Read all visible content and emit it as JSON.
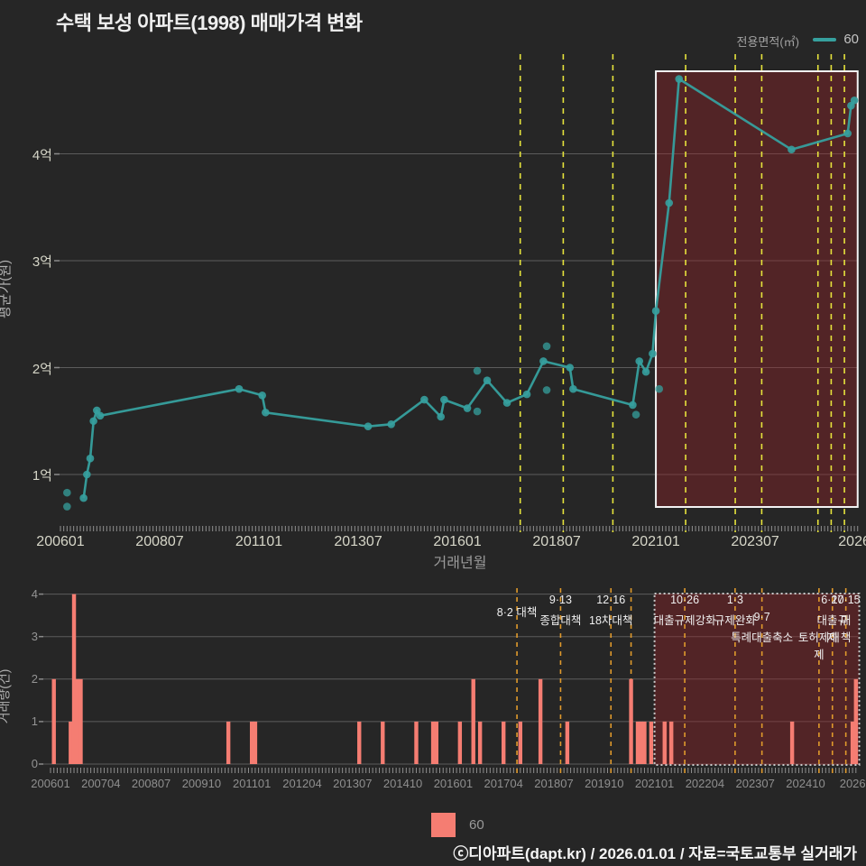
{
  "page": {
    "title": "수택 보성 아파트(1998) 매매가격 변화",
    "footer": "ⓒ디아파트(dapt.kr) / 2026.01.01 / 자료=국토교통부 실거래가"
  },
  "legend_top": {
    "label": "전용면적(㎡)",
    "series": "60"
  },
  "legend_bottom": {
    "series": "60"
  },
  "colors": {
    "background": "#262626",
    "teal_line": "#36a09e",
    "pink_bar": "#f57d72",
    "yellow_dash": "#e6e33c",
    "orange_dash": "#e09a2c",
    "grid": "#5c5c5c",
    "tick": "#999999",
    "highlight_fill": "rgba(150,34,40,0.40)",
    "highlight_stroke_top": "#f2f2f2",
    "highlight_stroke_bottom": "#c9c9c9",
    "policy_text": "#f0f0f0"
  },
  "policy_lines": [
    {
      "m": "201708",
      "top": true,
      "labels": [
        {
          "text": "8·2 대책",
          "row": 1.5
        }
      ]
    },
    {
      "m": "201809",
      "top": true,
      "labels": [
        {
          "text": "9·13",
          "row": 1
        },
        {
          "text": "종합대책",
          "row": 2
        }
      ]
    },
    {
      "m": "201912",
      "top": true,
      "labels": [
        {
          "text": "12·16",
          "row": 1
        },
        {
          "text": "18차대책",
          "row": 2
        }
      ]
    },
    {
      "m": "202006",
      "top": false,
      "labels": []
    },
    {
      "m": "202110",
      "top": true,
      "labels": [
        {
          "text": "10·26",
          "row": 1
        },
        {
          "text": "대출규제강화",
          "row": 2
        }
      ]
    },
    {
      "m": "202301",
      "top": true,
      "labels": [
        {
          "text": "1·3",
          "row": 1
        },
        {
          "text": "규제완화",
          "row": 2
        }
      ]
    },
    {
      "m": "202309",
      "top": true,
      "labels": [
        {
          "text": "9·7",
          "row": 2
        },
        {
          "text": "특례대출축소",
          "row": 3
        }
      ]
    },
    {
      "m": "202502",
      "top": true,
      "labels": [
        {
          "text": "토허제해제",
          "row": 3
        }
      ]
    },
    {
      "m": "202506",
      "top": true,
      "labels": [
        {
          "text": "6·27",
          "row": 1
        },
        {
          "text": "대출규제",
          "row": 2
        }
      ]
    },
    {
      "m": "202510",
      "top": true,
      "labels": [
        {
          "text": "10·15",
          "row": 1
        },
        {
          "text": "대책",
          "row": 2
        }
      ]
    }
  ],
  "chart_data": [
    {
      "type": "line",
      "name": "price-history",
      "ylabel": "평균가(원)",
      "xlabel": "거래년월",
      "unit": "억원",
      "ylim": [
        0.5,
        4.9
      ],
      "grid": true,
      "legend_position": "top-right",
      "y_ticks": [
        {
          "v": 1,
          "label": "1억"
        },
        {
          "v": 2,
          "label": "2억"
        },
        {
          "v": 3,
          "label": "3억"
        },
        {
          "v": 4,
          "label": "4억"
        }
      ],
      "x_ticks": [
        {
          "m": "200601",
          "label": "200601"
        },
        {
          "m": "200807",
          "label": "200807"
        },
        {
          "m": "201101",
          "label": "201101"
        },
        {
          "m": "201307",
          "label": "201307"
        },
        {
          "m": "201601",
          "label": "201601"
        },
        {
          "m": "201807",
          "label": "201807"
        },
        {
          "m": "202101",
          "label": "202101"
        },
        {
          "m": "202307",
          "label": "202307"
        },
        {
          "m": "202601",
          "label": "2026"
        }
      ],
      "series": [
        {
          "name": "60",
          "points": [
            [
              "200608",
              0.78
            ],
            [
              "200609",
              1.0
            ],
            [
              "200610",
              1.15
            ],
            [
              "200611",
              1.5
            ],
            [
              "200612",
              1.6
            ],
            [
              "200701",
              1.55
            ],
            [
              "201007",
              1.8
            ],
            [
              "201102",
              1.74
            ],
            [
              "201103",
              1.58
            ],
            [
              "201310",
              1.45
            ],
            [
              "201405",
              1.47
            ],
            [
              "201503",
              1.7
            ],
            [
              "201508",
              1.54
            ],
            [
              "201509",
              1.7
            ],
            [
              "201604",
              1.62
            ],
            [
              "201610",
              1.88
            ],
            [
              "201704",
              1.67
            ],
            [
              "201710",
              1.75
            ],
            [
              "201803",
              2.06
            ],
            [
              "201811",
              2.0
            ],
            [
              "201812",
              1.8
            ],
            [
              "202006",
              1.65
            ],
            [
              "202008",
              2.06
            ],
            [
              "202010",
              1.96
            ],
            [
              "202012",
              2.13
            ],
            [
              "202101",
              2.53
            ],
            [
              "202105",
              3.54
            ],
            [
              "202108",
              4.7
            ],
            [
              "202406",
              4.04
            ],
            [
              "202511",
              4.19
            ],
            [
              "202512",
              4.45
            ],
            [
              "202601",
              4.5
            ]
          ]
        }
      ],
      "scatter": [
        [
          "200603",
          0.83
        ],
        [
          "200603",
          0.7
        ],
        [
          "201607",
          1.97
        ],
        [
          "201607",
          1.59
        ],
        [
          "201804",
          2.2
        ],
        [
          "201804",
          1.79
        ],
        [
          "202007",
          1.56
        ],
        [
          "202102",
          1.8
        ]
      ],
      "highlight": {
        "from": "202101",
        "to": "202602"
      }
    },
    {
      "type": "bar",
      "name": "transaction-volume",
      "ylabel": "거래량(건)",
      "ylim": [
        0,
        4
      ],
      "grid": true,
      "y_ticks": [
        {
          "v": 0,
          "label": "0"
        },
        {
          "v": 1,
          "label": "1"
        },
        {
          "v": 2,
          "label": "2"
        },
        {
          "v": 3,
          "label": "3"
        },
        {
          "v": 4,
          "label": "4"
        }
      ],
      "x_ticks": [
        {
          "m": "200601",
          "label": "200601"
        },
        {
          "m": "200704",
          "label": "200704"
        },
        {
          "m": "200807",
          "label": "200807"
        },
        {
          "m": "200910",
          "label": "200910"
        },
        {
          "m": "201101",
          "label": "201101"
        },
        {
          "m": "201204",
          "label": "201204"
        },
        {
          "m": "201307",
          "label": "201307"
        },
        {
          "m": "201410",
          "label": "201410"
        },
        {
          "m": "201601",
          "label": "201601"
        },
        {
          "m": "201704",
          "label": "201704"
        },
        {
          "m": "201807",
          "label": "201807"
        },
        {
          "m": "201910",
          "label": "201910"
        },
        {
          "m": "202101",
          "label": "202101"
        },
        {
          "m": "202204",
          "label": "202204"
        },
        {
          "m": "202307",
          "label": "202307"
        },
        {
          "m": "202410",
          "label": "202410"
        },
        {
          "m": "202601",
          "label": "20260"
        }
      ],
      "series": [
        {
          "name": "60",
          "bars": [
            [
              "200602",
              2
            ],
            [
              "200607",
              1
            ],
            [
              "200608",
              4
            ],
            [
              "200609",
              2
            ],
            [
              "200610",
              2
            ],
            [
              "201006",
              1
            ],
            [
              "201101",
              1
            ],
            [
              "201102",
              1
            ],
            [
              "201309",
              1
            ],
            [
              "201404",
              1
            ],
            [
              "201502",
              1
            ],
            [
              "201507",
              1
            ],
            [
              "201508",
              1
            ],
            [
              "201603",
              1
            ],
            [
              "201607",
              2
            ],
            [
              "201609",
              1
            ],
            [
              "201704",
              1
            ],
            [
              "201709",
              1
            ],
            [
              "201803",
              2
            ],
            [
              "201811",
              1
            ],
            [
              "202006",
              2
            ],
            [
              "202008",
              1
            ],
            [
              "202009",
              1
            ],
            [
              "202010",
              1
            ],
            [
              "202012",
              1
            ],
            [
              "202104",
              1
            ],
            [
              "202106",
              1
            ],
            [
              "202406",
              1
            ],
            [
              "202512",
              1
            ],
            [
              "202601",
              2
            ]
          ]
        }
      ],
      "highlight": {
        "from": "202101",
        "to": "202602"
      }
    }
  ]
}
